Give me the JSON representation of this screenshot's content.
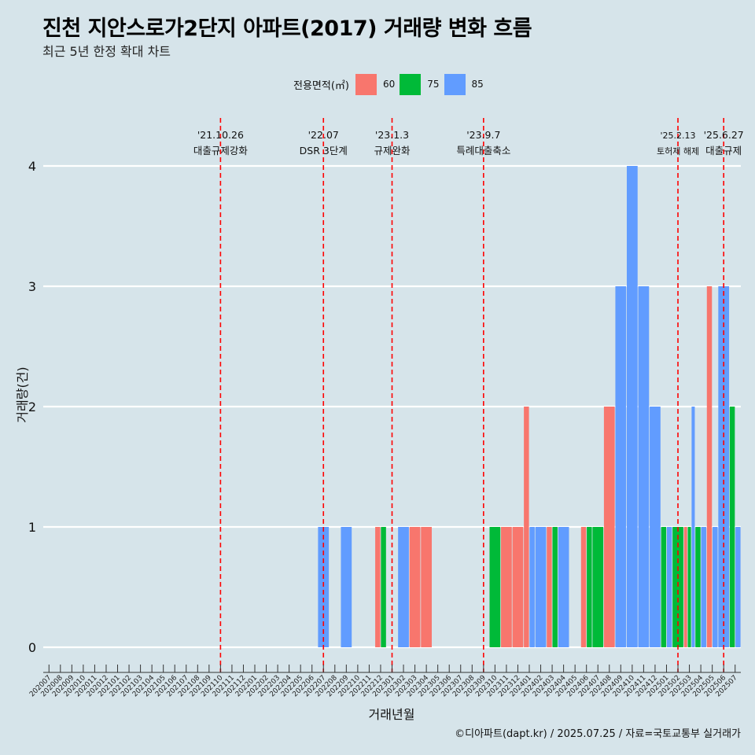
{
  "title": "진천 지안스로가2단지 아파트(2017) 거래량 변화 흐름",
  "subtitle": "최근 5년 한정 확대 차트",
  "caption": "©디아파트(dapt.kr) / 2025.07.25 / 자료=국토교통부 실거래가",
  "colors": {
    "background": "#d6e4ea",
    "s60": "#f8766d",
    "s75": "#00ba38",
    "s85": "#619cff",
    "event_line": "#ff0000",
    "grid": "#ffffff"
  },
  "legend": {
    "title": "전용면적(㎡)",
    "items": [
      {
        "label": "60",
        "color": "#f8766d"
      },
      {
        "label": "75",
        "color": "#00ba38"
      },
      {
        "label": "85",
        "color": "#619cff"
      }
    ]
  },
  "chart_data": {
    "type": "bar",
    "xlabel": "거래년월",
    "ylabel": "거래량(건)",
    "ylim": [
      0,
      4
    ],
    "yticks": [
      0,
      1,
      2,
      3,
      4
    ],
    "grid": true,
    "legend_position": "top",
    "categories": [
      "202007",
      "202008",
      "202009",
      "202010",
      "202011",
      "202012",
      "202101",
      "202102",
      "202103",
      "202104",
      "202105",
      "202106",
      "202107",
      "202108",
      "202109",
      "202110",
      "202111",
      "202112",
      "202201",
      "202202",
      "202203",
      "202204",
      "202205",
      "202206",
      "202207",
      "202208",
      "202209",
      "202210",
      "202211",
      "202212",
      "202301",
      "202302",
      "202303",
      "202304",
      "202305",
      "202306",
      "202307",
      "202308",
      "202309",
      "202310",
      "202311",
      "202312",
      "202401",
      "202402",
      "202403",
      "202404",
      "202405",
      "202406",
      "202407",
      "202408",
      "202409",
      "202410",
      "202411",
      "202412",
      "202501",
      "202502",
      "202503",
      "202504",
      "202505",
      "202506",
      "202507"
    ],
    "series": [
      {
        "name": "60",
        "color": "#f8766d",
        "values": [
          0,
          0,
          0,
          0,
          0,
          0,
          0,
          0,
          0,
          0,
          0,
          0,
          0,
          0,
          0,
          0,
          0,
          0,
          0,
          0,
          0,
          0,
          0,
          0,
          0,
          0,
          0,
          0,
          0,
          1,
          0,
          0,
          1,
          1,
          0,
          0,
          0,
          0,
          0,
          0,
          1,
          1,
          2,
          0,
          1,
          0,
          0,
          1,
          0,
          2,
          0,
          0,
          0,
          0,
          0,
          0,
          1,
          0,
          3,
          0,
          0
        ]
      },
      {
        "name": "75",
        "color": "#00ba38",
        "values": [
          0,
          0,
          0,
          0,
          0,
          0,
          0,
          0,
          0,
          0,
          0,
          0,
          0,
          0,
          0,
          0,
          0,
          0,
          0,
          0,
          0,
          0,
          0,
          0,
          0,
          0,
          0,
          0,
          0,
          1,
          0,
          0,
          0,
          0,
          0,
          0,
          0,
          0,
          0,
          1,
          0,
          0,
          0,
          0,
          1,
          0,
          0,
          1,
          1,
          0,
          0,
          0,
          0,
          0,
          1,
          1,
          1,
          1,
          0,
          0,
          2
        ]
      },
      {
        "name": "85",
        "color": "#619cff",
        "values": [
          0,
          0,
          0,
          0,
          0,
          0,
          0,
          0,
          0,
          0,
          0,
          0,
          0,
          0,
          0,
          0,
          0,
          0,
          0,
          0,
          0,
          0,
          0,
          0,
          1,
          0,
          1,
          0,
          0,
          0,
          0,
          1,
          0,
          0,
          0,
          0,
          0,
          0,
          0,
          0,
          0,
          0,
          1,
          1,
          0,
          1,
          0,
          0,
          0,
          0,
          3,
          4,
          3,
          2,
          1,
          0,
          2,
          1,
          1,
          3,
          1
        ]
      }
    ],
    "events": [
      {
        "month": "202110",
        "date": "'21.10.26",
        "label": "대출규제강화"
      },
      {
        "month": "202207",
        "date": "'22.07",
        "label": "DSR 3단계"
      },
      {
        "month": "202301",
        "date": "'23.1.3",
        "label": "규제완화"
      },
      {
        "month": "202309",
        "date": "'23.9.7",
        "label": "특례대출축소"
      },
      {
        "month": "202502",
        "date": "'25.2.13",
        "label": "토허제 해제"
      },
      {
        "month": "202506",
        "date": "'25.6.27",
        "label": "대출규제"
      }
    ]
  }
}
